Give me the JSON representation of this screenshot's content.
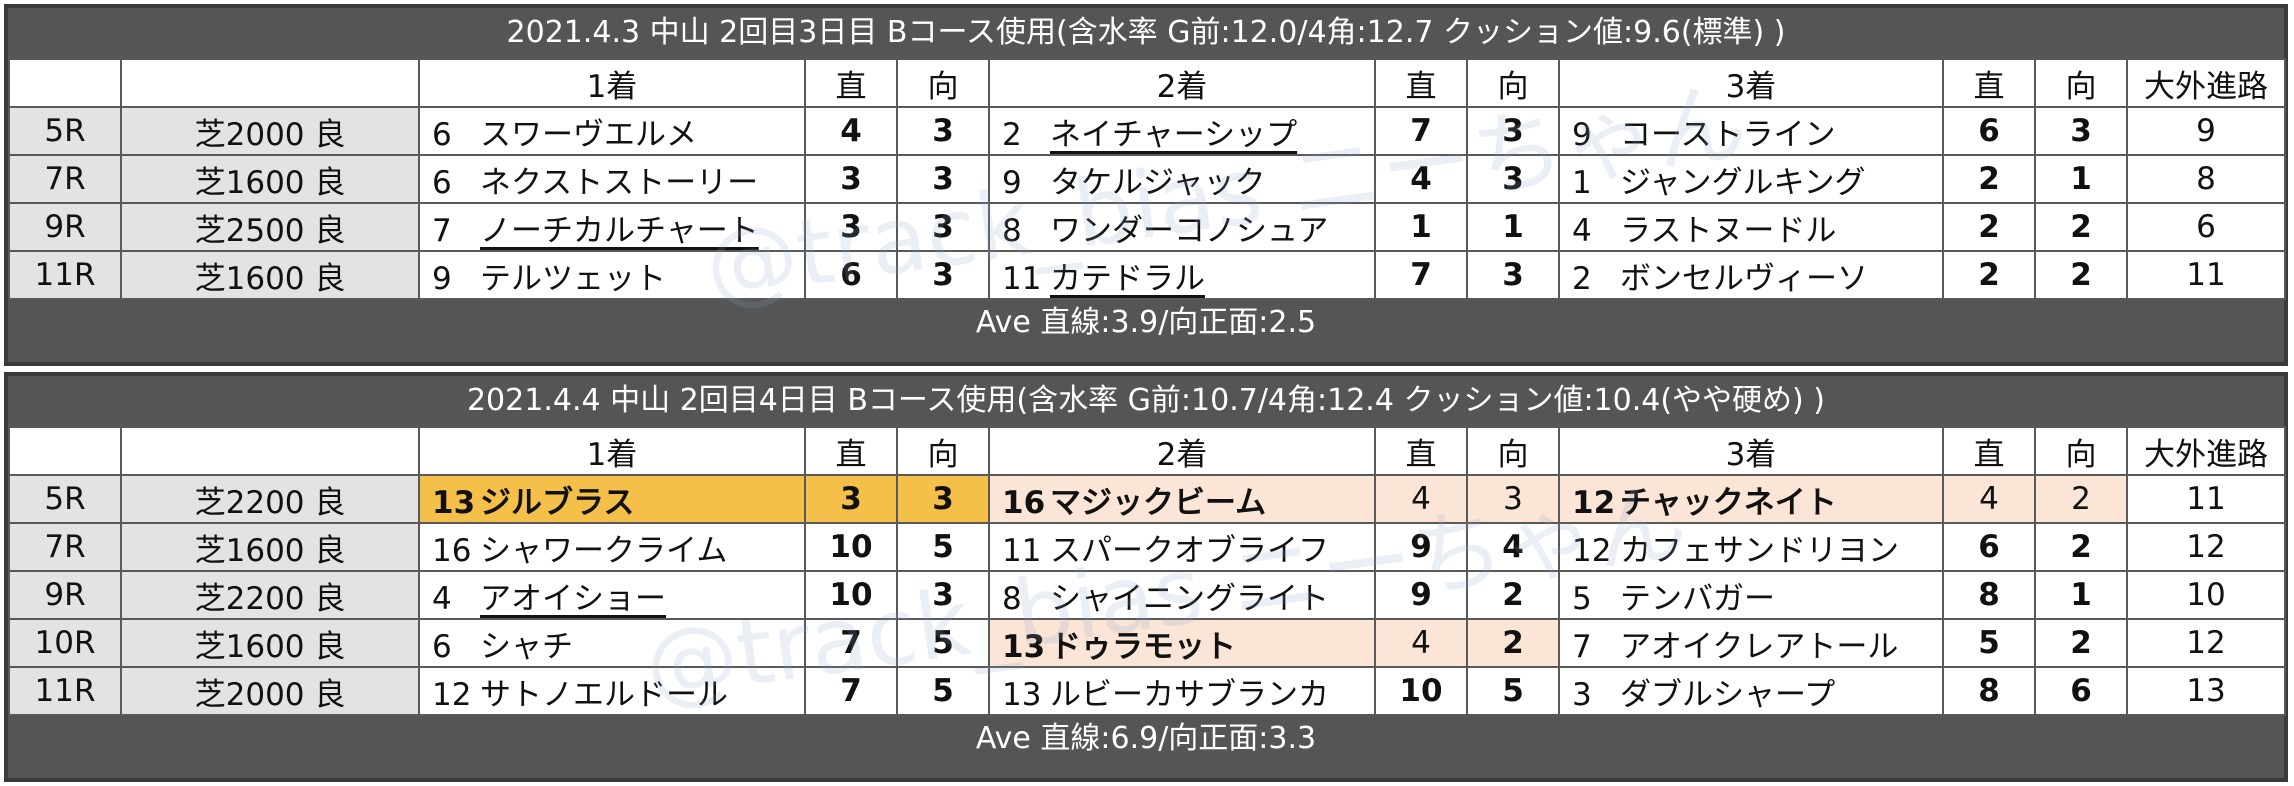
{
  "watermark": "@track_bias ニーちゃん",
  "blocks": [
    {
      "title": "2021.4.3 中山 2回目3日目 Bコース使用(含水率 G前:12.0/4角:12.7 クッション値:9.6(標準) )",
      "headers": {
        "race": "",
        "course": "",
        "p1": "1着",
        "s1": "直",
        "m1": "向",
        "p2": "2着",
        "s2": "直",
        "m2": "向",
        "p3": "3着",
        "s3": "直",
        "m3": "向",
        "wide": "大外進路"
      },
      "rows": [
        {
          "race": "5R",
          "course": "芝2000 良",
          "h1": {
            "num": "6",
            "name": "スワーヴエルメ"
          },
          "s1": "4",
          "m1": "3",
          "h2": {
            "num": "2",
            "name": "ネイチャーシップ"
          },
          "s2": "7",
          "m2": "3",
          "h3": {
            "num": "9",
            "name": "コーストライン"
          },
          "s3": "6",
          "m3": "3",
          "wide": "9"
        },
        {
          "race": "7R",
          "course": "芝1600 良",
          "h1": {
            "num": "6",
            "name": "ネクストストーリー"
          },
          "s1": "3",
          "m1": "3",
          "h2": {
            "num": "9",
            "name": "タケルジャック"
          },
          "s2": "4",
          "m2": "3",
          "h3": {
            "num": "1",
            "name": "ジャングルキング"
          },
          "s3": "2",
          "m3": "1",
          "wide": "8"
        },
        {
          "race": "9R",
          "course": "芝2500 良",
          "h1": {
            "num": "7",
            "name": "ノーチカルチャート"
          },
          "s1": "3",
          "m1": "3",
          "h2": {
            "num": "8",
            "name": "ワンダーコノシュア"
          },
          "s2": "1",
          "m2": "1",
          "h3": {
            "num": "4",
            "name": "ラストヌードル"
          },
          "s3": "2",
          "m3": "2",
          "wide": "6"
        },
        {
          "race": "11R",
          "course": "芝1600 良",
          "h1": {
            "num": "9",
            "name": "テルツェット"
          },
          "s1": "6",
          "m1": "3",
          "h2": {
            "num": "11",
            "name": "カテドラル"
          },
          "s2": "7",
          "m2": "3",
          "h3": {
            "num": "2",
            "name": "ボンセルヴィーソ"
          },
          "s3": "2",
          "m3": "2",
          "wide": "11"
        }
      ],
      "ave": "Ave 直線:3.9/向正面:2.5"
    },
    {
      "title": "2021.4.4 中山 2回目4日目 Bコース使用(含水率 G前:10.7/4角:12.4 クッション値:10.4(やや硬め) )",
      "headers": {
        "race": "",
        "course": "",
        "p1": "1着",
        "s1": "直",
        "m1": "向",
        "p2": "2着",
        "s2": "直",
        "m2": "向",
        "p3": "3着",
        "s3": "直",
        "m3": "向",
        "wide": "大外進路"
      },
      "rows": [
        {
          "race": "5R",
          "course": "芝2200 良",
          "h1": {
            "num": "13",
            "name": "ジルブラス"
          },
          "s1": "3",
          "m1": "3",
          "h2": {
            "num": "16",
            "name": "マジックビーム"
          },
          "s2": "4",
          "m2": "3",
          "h3": {
            "num": "12",
            "name": "チャックネイト"
          },
          "s3": "4",
          "m3": "2",
          "wide": "11"
        },
        {
          "race": "7R",
          "course": "芝1600 良",
          "h1": {
            "num": "16",
            "name": "シャワークライム"
          },
          "s1": "10",
          "m1": "5",
          "h2": {
            "num": "11",
            "name": "スパークオブライフ"
          },
          "s2": "9",
          "m2": "4",
          "h3": {
            "num": "12",
            "name": "カフェサンドリヨン"
          },
          "s3": "6",
          "m3": "2",
          "wide": "12"
        },
        {
          "race": "9R",
          "course": "芝2200 良",
          "h1": {
            "num": "4",
            "name": "アオイショー"
          },
          "s1": "10",
          "m1": "3",
          "h2": {
            "num": "8",
            "name": "シャイニングライト"
          },
          "s2": "9",
          "m2": "2",
          "h3": {
            "num": "5",
            "name": "テンバガー"
          },
          "s3": "8",
          "m3": "1",
          "wide": "10"
        },
        {
          "race": "10R",
          "course": "芝1600 良",
          "h1": {
            "num": "6",
            "name": "シャチ"
          },
          "s1": "7",
          "m1": "5",
          "h2": {
            "num": "13",
            "name": "ドゥラモット"
          },
          "s2": "4",
          "m2": "2",
          "h3": {
            "num": "7",
            "name": "アオイクレアトール"
          },
          "s3": "5",
          "m3": "2",
          "wide": "12"
        },
        {
          "race": "11R",
          "course": "芝2000 良",
          "h1": {
            "num": "12",
            "name": "サトノエルドール"
          },
          "s1": "7",
          "m1": "5",
          "h2": {
            "num": "13",
            "name": "ルビーカサブランカ"
          },
          "s2": "10",
          "m2": "5",
          "h3": {
            "num": "3",
            "name": "ダブルシャープ"
          },
          "s3": "8",
          "m3": "6",
          "wide": "13"
        }
      ],
      "ave": "Ave 直線:6.9/向正面:3.3"
    }
  ]
}
